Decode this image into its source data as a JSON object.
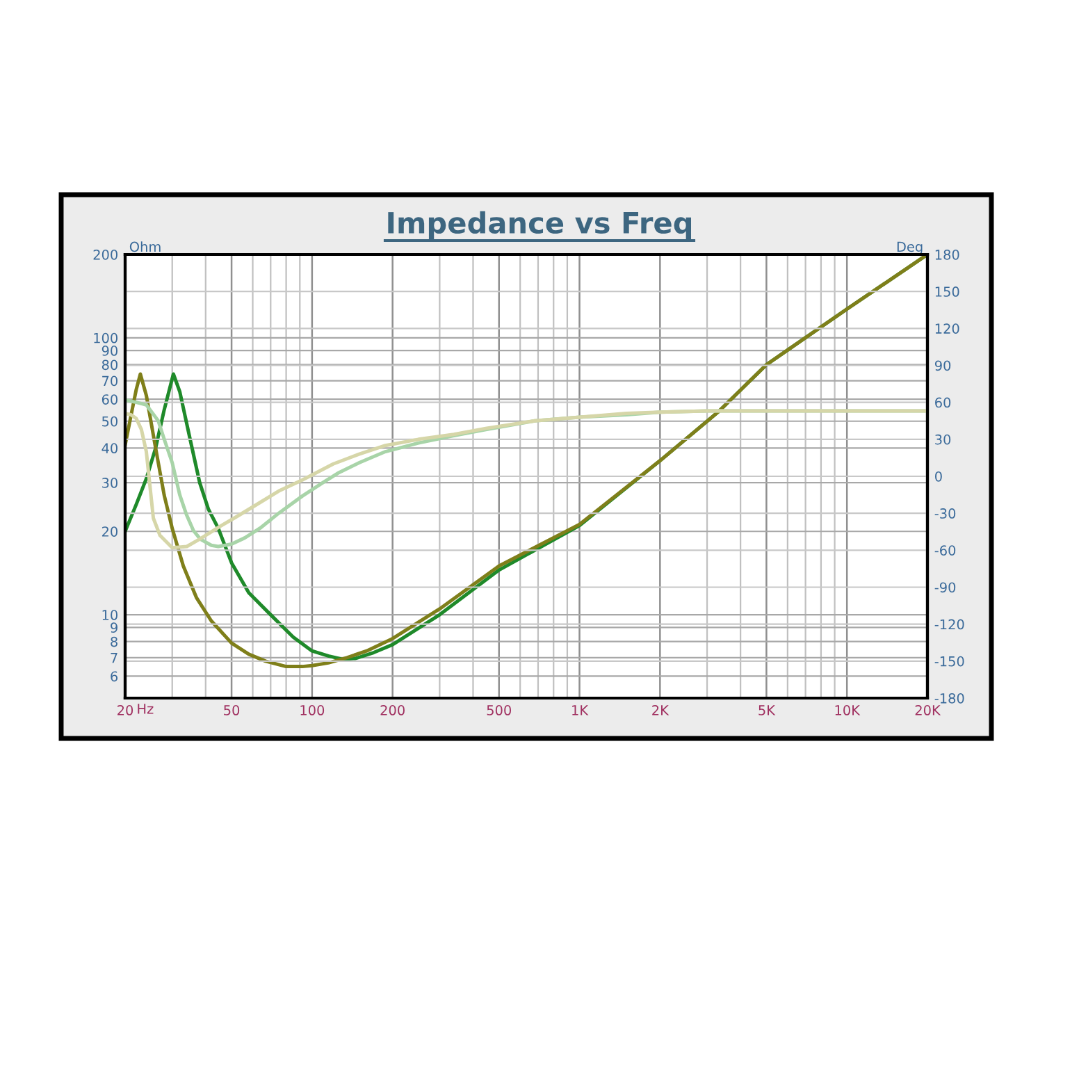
{
  "chart_data": {
    "type": "line",
    "title": "Impedance vs Freq",
    "xlabel": "Hz",
    "ylabel": "Ohm",
    "y2label": "Deg",
    "log": "xy",
    "grid": true,
    "marker": "none",
    "line_style": "solid",
    "xlim": [
      20,
      20000
    ],
    "xticks": [
      20,
      50,
      100,
      200,
      500,
      {
        "value": 1000,
        "label": "1K"
      },
      {
        "value": 2000,
        "label": "2K"
      },
      {
        "value": 5000,
        "label": "5K"
      },
      {
        "value": 10000,
        "label": "10K"
      },
      {
        "value": 20000,
        "label": "20K"
      }
    ],
    "ylim": [
      5,
      200
    ],
    "yticks": [
      6,
      7,
      8,
      9,
      10,
      20,
      30,
      40,
      50,
      60,
      70,
      80,
      90,
      100,
      200
    ],
    "y2lim": [
      -180,
      180
    ],
    "y2ticks": [
      -180,
      -150,
      -120,
      -90,
      -60,
      -30,
      0,
      30,
      60,
      90,
      120,
      150,
      180
    ],
    "series": [
      {
        "color": "#a8d4a8",
        "axis": "y2",
        "x": [
          20,
          22,
          24,
          26.6,
          28,
          30,
          32,
          33.9,
          36,
          38.2,
          42,
          44.6,
          50,
          56,
          64,
          75,
          92,
          110,
          126,
          150,
          188,
          250,
          339,
          450,
          680,
          1000,
          1500,
          2000,
          3000,
          5000,
          10000,
          20000
        ],
        "values": [
          62,
          60,
          58,
          45,
          30,
          11,
          -15,
          -31,
          -44,
          -51,
          -56,
          -57,
          -55,
          -50,
          -42,
          -30,
          -16,
          -5,
          3,
          11,
          20,
          27,
          33,
          38,
          45,
          48,
          50,
          52,
          53,
          53,
          53,
          53
        ]
      },
      {
        "color": "#d6d6a8",
        "axis": "y2",
        "x": [
          20,
          21,
          22,
          23,
          24,
          25.5,
          27,
          30,
          34,
          38,
          45,
          52,
          62,
          75,
          92,
          120,
          150,
          188,
          250,
          339,
          450,
          680,
          1000,
          1500,
          2000,
          3000,
          5000,
          10000,
          20000
        ],
        "values": [
          51,
          50,
          47,
          38,
          20,
          -34,
          -48,
          -58,
          -57,
          -51,
          -41,
          -33,
          -23,
          -12,
          -3,
          10,
          18,
          25,
          30,
          34,
          39,
          45,
          48,
          51,
          52,
          53,
          53,
          53,
          53
        ]
      },
      {
        "color": "#1f8a2a",
        "x": [
          20,
          22,
          24,
          26,
          28,
          30.3,
          32,
          35,
          38,
          41,
          44.6,
          50,
          58,
          70,
          85,
          100,
          115,
          130,
          145,
          170,
          200,
          300,
          500,
          1000,
          2000,
          3300,
          5000,
          10000,
          20000
        ],
        "values": [
          20,
          25,
          31,
          40,
          55,
          74,
          64,
          43,
          30,
          24,
          20.5,
          15.4,
          12,
          10,
          8.3,
          7.4,
          7.1,
          6.9,
          6.95,
          7.3,
          7.8,
          10,
          14.5,
          21,
          36,
          54,
          80,
          127,
          200
        ]
      },
      {
        "color": "#7f7f1a",
        "x": [
          20,
          21,
          22,
          22.8,
          24,
          26,
          28,
          30,
          33,
          37,
          42,
          50,
          58,
          67,
          80,
          92,
          100,
          115,
          135,
          160,
          200,
          300,
          500,
          1000,
          2000,
          3300,
          5000,
          10000,
          20000
        ],
        "values": [
          41,
          52,
          65,
          74,
          62,
          40,
          27,
          20.5,
          15,
          11.5,
          9.5,
          7.9,
          7.2,
          6.8,
          6.5,
          6.5,
          6.55,
          6.7,
          7,
          7.4,
          8.2,
          10.5,
          15,
          21.2,
          36,
          54,
          80,
          127,
          200
        ]
      }
    ]
  }
}
